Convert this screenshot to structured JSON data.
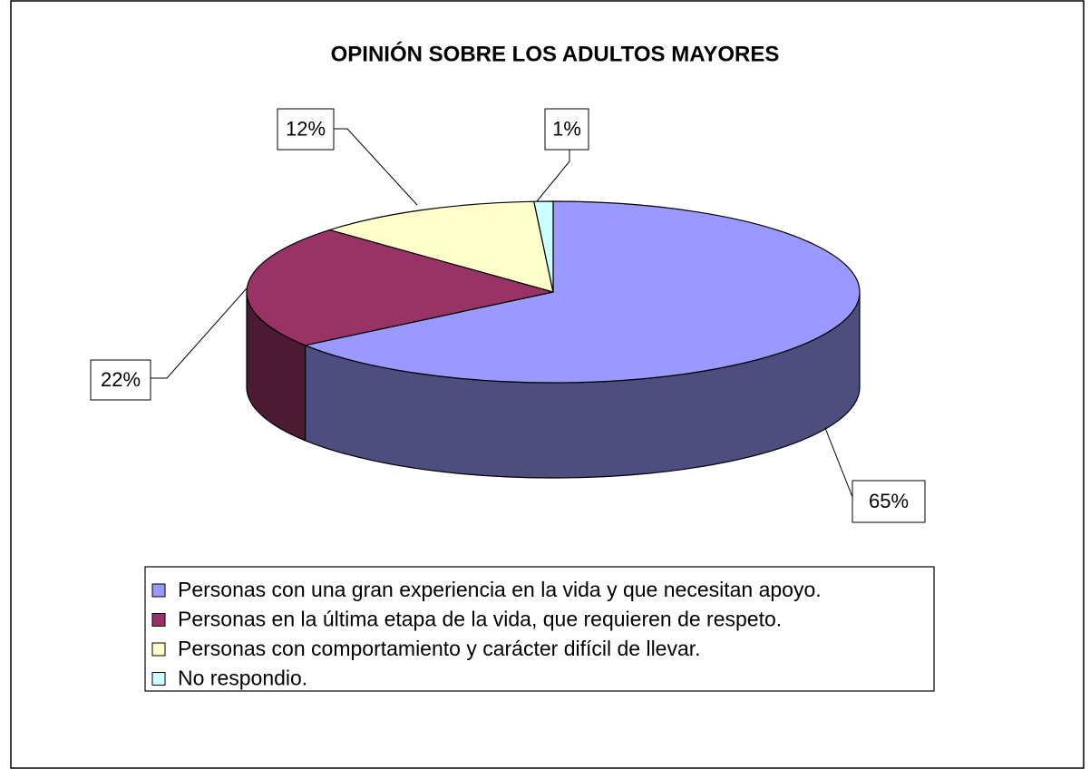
{
  "chart_data": {
    "type": "pie3d",
    "title": "OPINIÓN SOBRE LOS ADULTOS MAYORES",
    "categories": [
      "Personas con una gran experiencia en la vida y que necesitan apoyo.",
      "Personas en la última etapa de la vida, que requieren de respeto.",
      "Personas con comportamiento y carácter difícil de llevar.",
      "No respondio."
    ],
    "values": [
      65,
      22,
      12,
      1
    ],
    "value_labels": [
      "65%",
      "22%",
      "12%",
      "1%"
    ],
    "colors": [
      "#9999ff",
      "#993366",
      "#ffffcc",
      "#ccffff"
    ],
    "legend": "bottom"
  }
}
